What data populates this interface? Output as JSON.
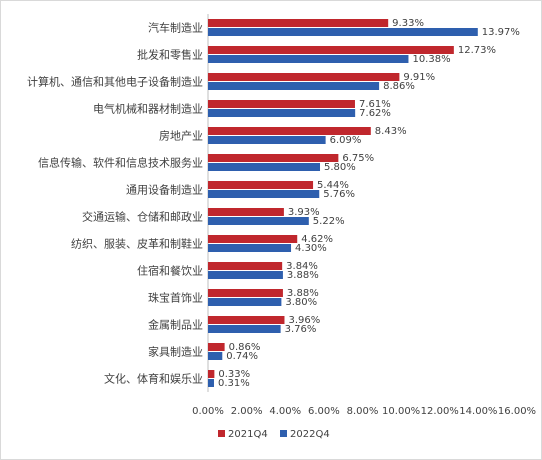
{
  "chart_data": {
    "type": "bar",
    "orientation": "horizontal",
    "title": "",
    "xlabel": "",
    "ylabel": "",
    "categories": [
      "汽车制造业",
      "批发和零售业",
      "计算机、通信和其他电子设备制造业",
      "电气机械和器材制造业",
      "房地产业",
      "信息传输、软件和信息技术服务业",
      "通用设备制造业",
      "交通运输、仓储和邮政业",
      "纺织、服装、皮革和制鞋业",
      "住宿和餐饮业",
      "珠宝首饰业",
      "金属制品业",
      "家具制造业",
      "文化、体育和娱乐业"
    ],
    "series": [
      {
        "name": "2021Q4",
        "color": "#c0272d",
        "values": [
          9.33,
          12.73,
          9.91,
          7.61,
          8.43,
          6.75,
          5.44,
          3.93,
          4.62,
          3.84,
          3.88,
          3.96,
          0.86,
          0.33
        ],
        "labels": [
          "9.33%",
          "12.73%",
          "9.91%",
          "7.61%",
          "8.43%",
          "6.75%",
          "5.44%",
          "3.93%",
          "4.62%",
          "3.84%",
          "3.88%",
          "3.96%",
          "0.86%",
          "0.33%"
        ]
      },
      {
        "name": "2022Q4",
        "color": "#2e5fae",
        "values": [
          13.97,
          10.38,
          8.86,
          7.62,
          6.09,
          5.8,
          5.76,
          5.22,
          4.3,
          3.88,
          3.8,
          3.76,
          0.74,
          0.31
        ],
        "labels": [
          "13.97%",
          "10.38%",
          "8.86%",
          "7.62%",
          "6.09%",
          "5.80%",
          "5.76%",
          "5.22%",
          "4.30%",
          "3.88%",
          "3.80%",
          "3.76%",
          "0.74%",
          "0.31%"
        ]
      }
    ],
    "xlim": [
      0,
      16
    ],
    "xticks": [
      0,
      2,
      4,
      6,
      8,
      10,
      12,
      14,
      16
    ],
    "xtick_labels": [
      "0.00%",
      "2.00%",
      "4.00%",
      "6.00%",
      "8.00%",
      "10.00%",
      "12.00%",
      "14.00%",
      "16.00%"
    ],
    "grid": false,
    "legend_position": "bottom"
  }
}
